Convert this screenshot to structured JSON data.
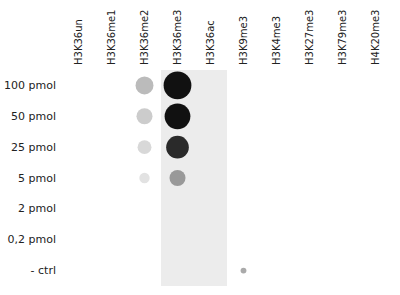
{
  "chart_data": {
    "type": "dot_matrix",
    "categories": [
      "H3K36un",
      "H3K36me1",
      "H3K36me2",
      "H3K36me3",
      "H3K36ac",
      "H3K9me3",
      "H3K4me3",
      "H3K27me3",
      "H3K79me3",
      "H4K20me3"
    ],
    "y_categories": [
      "100 pmol",
      "50 pmol",
      "25 pmol",
      "5 pmol",
      "2 pmol",
      "0,2 pmol",
      "- ctrl"
    ],
    "points": [
      {
        "x": "H3K36me3",
        "y": "100 pmol",
        "size": 180,
        "color": "#111111"
      },
      {
        "x": "H3K36me3",
        "y": "50 pmol",
        "size": 155,
        "color": "#111111"
      },
      {
        "x": "H3K36me3",
        "y": "25 pmol",
        "size": 120,
        "color": "#2a2a2a"
      },
      {
        "x": "H3K36me3",
        "y": "5 pmol",
        "size": 60,
        "color": "#999999"
      },
      {
        "x": "H3K36me2",
        "y": "100 pmol",
        "size": 75,
        "color": "#bbbbbb"
      },
      {
        "x": "H3K36me2",
        "y": "50 pmol",
        "size": 60,
        "color": "#cccccc"
      },
      {
        "x": "H3K36me2",
        "y": "25 pmol",
        "size": 45,
        "color": "#d8d8d8"
      },
      {
        "x": "H3K36me2",
        "y": "5 pmol",
        "size": 25,
        "color": "#e2e2e2"
      },
      {
        "x": "H3K9me3",
        "y": "- ctrl",
        "size": 8,
        "color": "#aaaaaa"
      }
    ],
    "highlight": {
      "categories": [
        "H3K36me3",
        "H3K36ac"
      ],
      "color": "#ececec"
    },
    "grid": false
  }
}
